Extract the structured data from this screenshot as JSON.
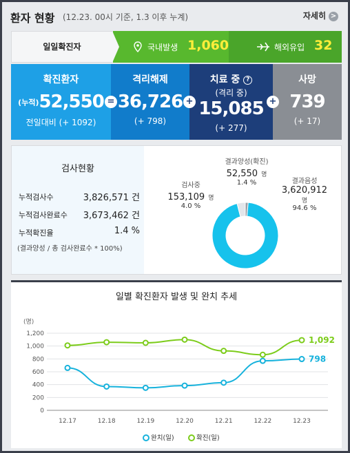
{
  "header": {
    "title": "환자 현황",
    "subtitle": "(12.23. 00시 기준, 1.3 이후 누계)",
    "detail_label": "자세히",
    "detail_arrow": ">"
  },
  "daily": {
    "label": "일일확진자",
    "domestic_label": "국내발생",
    "domestic_value": "1,060",
    "overseas_label": "해외유입",
    "overseas_value": "32",
    "colors": {
      "green": "#58b82e",
      "value": "#ffee3a"
    }
  },
  "cards": {
    "confirmed": {
      "title": "확진환자",
      "prefix": "(누적)",
      "value": "52,550",
      "sub": "전일대비 (+ 1092)"
    },
    "released": {
      "title": "격리해제",
      "value": "36,726",
      "diff": "(+ 798)"
    },
    "treatment": {
      "title": "치료 중",
      "sub": "(격리 중)",
      "value": "15,085",
      "diff": "(+ 277)",
      "help_icon": "?"
    },
    "deaths": {
      "title": "사망",
      "value": "739",
      "diff": "(+ 17)"
    },
    "operators": [
      "=",
      "+",
      "+"
    ]
  },
  "tests": {
    "title": "검사현황",
    "rows": [
      {
        "label": "누적검사수",
        "value": "3,826,571 건"
      },
      {
        "label": "누적검사완료수",
        "value": "3,673,462 건"
      },
      {
        "label": "누적확진율",
        "value": "1.4 %"
      }
    ],
    "note": "(결과양성 / 총 검사완료수 * 100%)",
    "donut": {
      "in_progress": {
        "label": "검사중",
        "value": "153,109",
        "unit": "명",
        "pct": "4.0 %",
        "fraction": 0.04
      },
      "positive": {
        "label": "결과양성(확진)",
        "value": "52,550",
        "unit": "명",
        "pct": "1.4 %",
        "fraction": 0.014
      },
      "negative": {
        "label": "결과음성",
        "value": "3,620,912",
        "unit": "명",
        "pct": "94.6 %",
        "fraction": 0.946
      },
      "colors": {
        "negative": "#16c2ec",
        "in_progress": "#e3e6ea",
        "positive": "#9aa0a8"
      }
    }
  },
  "chart_data": {
    "type": "line",
    "title": "일별 확진환자 발생 및 완치 추세",
    "ylabel": "(명)",
    "x": [
      "12.17",
      "12.18",
      "12.19",
      "12.20",
      "12.21",
      "12.22",
      "12.23"
    ],
    "ylim": [
      0,
      1200
    ],
    "yticks": [
      0,
      200,
      400,
      600,
      800,
      1000,
      1200
    ],
    "ytick_labels": [
      "0",
      "200",
      "400",
      "600",
      "800",
      "1,000",
      "1,200"
    ],
    "grid": true,
    "legend": "bottom",
    "series": [
      {
        "name": "완치(일)",
        "color": "#16b2dc",
        "values": [
          660,
          370,
          350,
          385,
          430,
          770,
          798
        ],
        "end_label": "798"
      },
      {
        "name": "확진(일)",
        "color": "#7ccc1a",
        "values": [
          1010,
          1060,
          1050,
          1100,
          925,
          865,
          1092
        ],
        "end_label": "1,092"
      }
    ]
  }
}
